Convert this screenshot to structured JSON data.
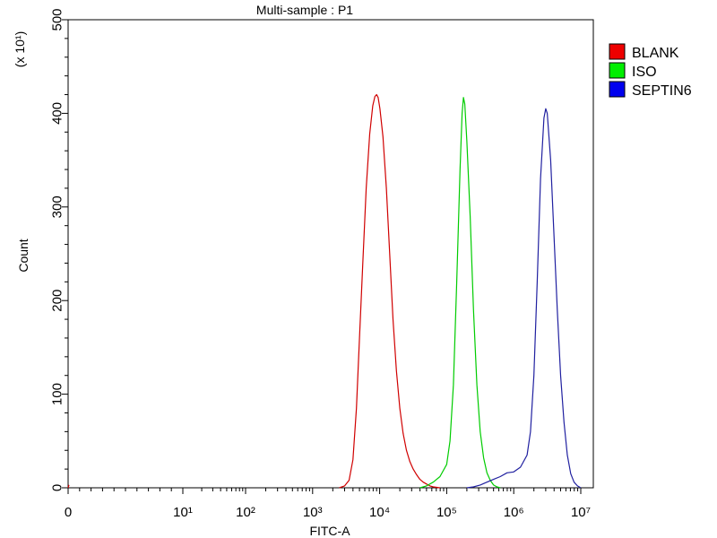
{
  "chart_data": {
    "type": "line",
    "title": "Multi-sample : P1",
    "xlabel": "FITC-A",
    "ylabel": "Count",
    "y_multiplier_label": "(x 10¹)",
    "x_scale": "biexponential (linear near 0, log above)",
    "x_ticks": [
      {
        "value": 0,
        "label": "0"
      },
      {
        "value": 10,
        "label": "10¹"
      },
      {
        "value": 100,
        "label": "10²"
      },
      {
        "value": 1000,
        "label": "10³"
      },
      {
        "value": 10000,
        "label": "10⁴"
      },
      {
        "value": 100000,
        "label": "10⁵"
      },
      {
        "value": 1000000,
        "label": "10⁶"
      },
      {
        "value": 10000000,
        "label": "10⁷"
      }
    ],
    "ylim": [
      0,
      500
    ],
    "yticks": [
      0,
      100,
      200,
      300,
      400,
      500
    ],
    "grid": false,
    "legend_position": "right",
    "series": [
      {
        "name": "BLANK",
        "color": "#d00000",
        "legend_color": "#ee0000",
        "x": [
          2500,
          3000,
          3500,
          4000,
          4500,
          5000,
          5600,
          6300,
          7100,
          7900,
          8500,
          9000,
          9500,
          10100,
          11200,
          12600,
          14100,
          15800,
          17800,
          20000,
          22400,
          25100,
          28200,
          31600,
          35500,
          39800,
          44700,
          50100,
          56200,
          63100,
          70800,
          79400
        ],
        "y": [
          0,
          2,
          8,
          30,
          85,
          160,
          240,
          320,
          378,
          408,
          418,
          420,
          417,
          405,
          375,
          320,
          250,
          180,
          125,
          85,
          58,
          40,
          28,
          20,
          14,
          9,
          6,
          4,
          2,
          1,
          0.5,
          0
        ]
      },
      {
        "name": "ISO",
        "color": "#00cc00",
        "legend_color": "#00ee00",
        "x": [
          40000,
          50100,
          63100,
          79400,
          100000,
          112000,
          126000,
          141000,
          158000,
          170000,
          178000,
          186000,
          200000,
          224000,
          251000,
          282000,
          316000,
          355000,
          398000,
          447000,
          501000,
          562000,
          631000
        ],
        "y": [
          0,
          2,
          6,
          12,
          25,
          50,
          110,
          220,
          340,
          400,
          417,
          410,
          370,
          290,
          190,
          110,
          60,
          32,
          16,
          8,
          3,
          1,
          0
        ]
      },
      {
        "name": "SEPTIN6",
        "color": "#2020a0",
        "legend_color": "#0000ee",
        "x": [
          200000,
          251000,
          316000,
          398000,
          501000,
          631000,
          794000,
          1000000,
          1260000,
          1580000,
          1780000,
          2000000,
          2240000,
          2510000,
          2820000,
          3000000,
          3160000,
          3550000,
          3980000,
          4470000,
          5010000,
          5620000,
          6310000,
          7080000,
          7940000,
          8910000,
          10000000
        ],
        "y": [
          0,
          1,
          3,
          6,
          9,
          12,
          16,
          17,
          22,
          35,
          60,
          120,
          220,
          330,
          395,
          405,
          400,
          350,
          270,
          190,
          120,
          70,
          35,
          15,
          6,
          2,
          0
        ]
      }
    ],
    "extra_marks": [
      {
        "name": "baseline-blip-near-zero",
        "color": "#d00000",
        "x": 0,
        "y": 3
      }
    ]
  }
}
